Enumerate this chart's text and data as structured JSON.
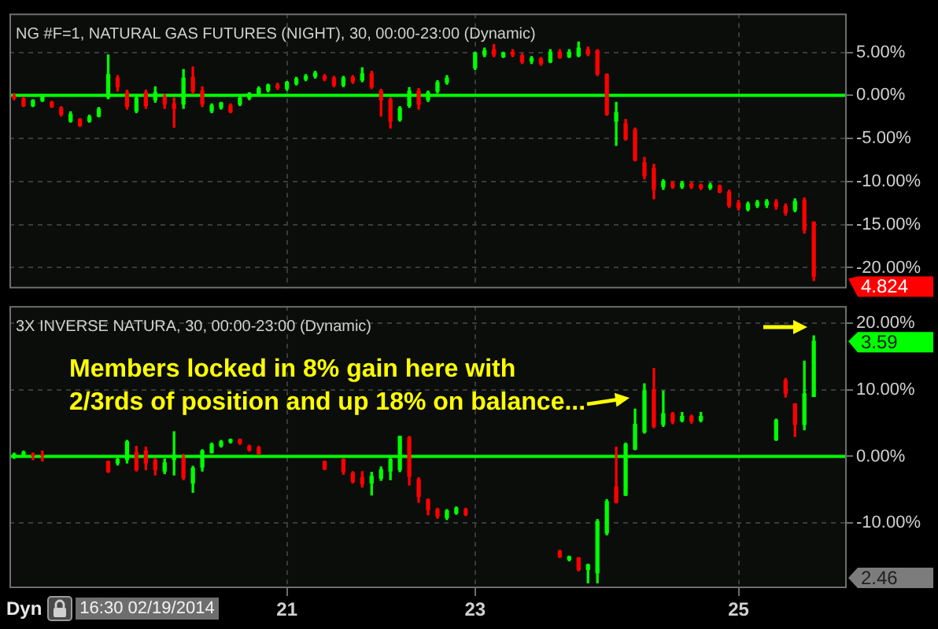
{
  "chart_data": [
    {
      "type": "candlestick",
      "title": "NG #F=1, NATURAL GAS FUTURES (NIGHT), 30, 00:00-23:00 (Dynamic)",
      "categories": [
        null,
        null,
        null,
        null,
        null,
        null,
        null,
        null,
        null,
        null,
        null,
        null,
        null,
        null,
        null,
        null,
        null,
        null,
        null,
        null,
        null,
        null,
        null,
        null,
        null,
        null,
        null,
        null,
        null,
        "21",
        null,
        null,
        null,
        null,
        null,
        null,
        null,
        null,
        null,
        null,
        null,
        null,
        null,
        null,
        null,
        null,
        null,
        null,
        null,
        "23",
        null,
        null,
        null,
        null,
        null,
        null,
        null,
        null,
        null,
        null,
        null,
        null,
        null,
        null,
        null,
        null,
        null,
        null,
        null,
        null,
        null,
        null,
        null,
        null,
        null,
        null,
        null,
        "25",
        null,
        null,
        null,
        null,
        null,
        null,
        null,
        null,
        null,
        null,
        null
      ],
      "ohlc": [
        [
          0,
          0.2,
          -0.5,
          -0.3
        ],
        [
          -0.4,
          -0.2,
          -1.3,
          -1.2
        ],
        [
          -1.2,
          -0.5,
          -1.3,
          -0.6
        ],
        [
          -0.6,
          0.1,
          -0.7,
          -0.2
        ],
        [
          -0.8,
          -0.7,
          -1.4,
          -1.3
        ],
        [
          -1.5,
          -1.3,
          -2.4,
          -2.2
        ],
        [
          -3.0,
          -1.9,
          -3.1,
          -2.2
        ],
        [
          -2.8,
          -2.7,
          -3.6,
          -3.5
        ],
        [
          -3.0,
          -2.3,
          -3.1,
          -2.5
        ],
        [
          -2.4,
          -1.4,
          -2.5,
          -1.6
        ],
        [
          -0.2,
          4.7,
          -0.4,
          2.4
        ],
        [
          2.0,
          2.3,
          0.5,
          1.0
        ],
        [
          0.3,
          0.6,
          -1.6,
          -1.3
        ],
        [
          -1.8,
          0.0,
          -2.0,
          -0.3
        ],
        [
          0.3,
          0.6,
          -1.5,
          -1.2
        ],
        [
          -0.5,
          1.0,
          -0.8,
          0.3
        ],
        [
          -0.2,
          0.1,
          -1.5,
          -1.0
        ],
        [
          -1.0,
          -0.3,
          -3.7,
          -1.5
        ],
        [
          -1.0,
          3.0,
          -1.5,
          2.0
        ],
        [
          2.1,
          3.3,
          0.2,
          0.5
        ],
        [
          0.5,
          1.0,
          -1.3,
          -1.0
        ],
        [
          -1.8,
          -1.0,
          -2.0,
          -1.2
        ],
        [
          -1.4,
          -0.8,
          -1.6,
          -0.9
        ],
        [
          -1.2,
          -1.0,
          -2.0,
          -1.9
        ],
        [
          -1.0,
          -0.1,
          -1.2,
          -0.3
        ],
        [
          -0.3,
          0.3,
          -0.5,
          0.2
        ],
        [
          0.2,
          1.0,
          0.0,
          0.8
        ],
        [
          0.6,
          1.3,
          0.4,
          1.2
        ],
        [
          1.2,
          1.4,
          0.7,
          0.9
        ],
        [
          0.8,
          1.6,
          0.6,
          1.5
        ],
        [
          1.4,
          2.1,
          1.2,
          1.9
        ],
        [
          1.9,
          2.4,
          1.7,
          2.2
        ],
        [
          2.2,
          2.8,
          2.0,
          2.6
        ],
        [
          2.2,
          2.4,
          1.7,
          1.9
        ],
        [
          2.0,
          2.2,
          1.0,
          1.2
        ],
        [
          1.2,
          2.2,
          1.0,
          2.0
        ],
        [
          2.1,
          2.3,
          1.4,
          1.6
        ],
        [
          1.8,
          3.2,
          1.6,
          2.5
        ],
        [
          2.5,
          2.8,
          0.8,
          1.0
        ],
        [
          0.5,
          0.7,
          -2.4,
          -0.5
        ],
        [
          -0.5,
          -0.3,
          -3.8,
          -3.0
        ],
        [
          -2.8,
          -1.3,
          -3.0,
          -1.5
        ],
        [
          -1.2,
          0.9,
          -1.4,
          0.5
        ],
        [
          0.5,
          0.8,
          -1.6,
          -1.0
        ],
        [
          -0.5,
          0.5,
          -0.7,
          0.3
        ],
        [
          0.5,
          1.7,
          0.3,
          1.5
        ],
        [
          1.5,
          2.3,
          1.3,
          2.0
        ],
        null,
        null,
        [
          3.2,
          5.0,
          3.0,
          4.9
        ],
        [
          4.7,
          5.5,
          4.5,
          5.2
        ],
        [
          5.3,
          5.9,
          4.5,
          4.7
        ],
        [
          4.5,
          5.0,
          4.4,
          4.9
        ],
        [
          5.0,
          5.3,
          4.5,
          4.7
        ],
        [
          4.6,
          4.8,
          3.7,
          3.9
        ],
        [
          4.0,
          4.5,
          3.7,
          4.3
        ],
        [
          4.2,
          4.4,
          3.5,
          3.7
        ],
        [
          3.9,
          5.3,
          3.8,
          5.0
        ],
        [
          5.0,
          5.3,
          4.3,
          4.4
        ],
        [
          4.5,
          5.3,
          4.4,
          5.0
        ],
        [
          4.6,
          6.2,
          4.5,
          5.5
        ],
        [
          5.3,
          5.6,
          4.6,
          4.8
        ],
        [
          5.2,
          5.3,
          2.3,
          2.5
        ],
        [
          2.4,
          2.5,
          -2.3,
          -2.2
        ],
        [
          -3.0,
          -0.8,
          -5.8,
          -2.0
        ],
        [
          -3.3,
          -2.8,
          -5.2,
          -5.0
        ],
        [
          -4.0,
          -3.8,
          -7.6,
          -7.5
        ],
        [
          -7.8,
          -7.2,
          -9.7,
          -9.3
        ],
        [
          -8.5,
          -8.0,
          -12.0,
          -10.9
        ],
        [
          -10.6,
          -9.8,
          -10.9,
          -10.0
        ],
        [
          -10.2,
          -10.0,
          -10.8,
          -10.6
        ],
        [
          -10.6,
          -10.0,
          -10.8,
          -10.2
        ],
        [
          -10.3,
          -10.1,
          -10.8,
          -10.6
        ],
        [
          -10.4,
          -10.3,
          -10.9,
          -10.7
        ],
        [
          -10.7,
          -10.2,
          -10.9,
          -10.4
        ],
        [
          -10.5,
          -10.4,
          -11.3,
          -11.2
        ],
        [
          -11.2,
          -11.0,
          -13.0,
          -12.8
        ],
        [
          -12.5,
          -12.2,
          -13.3,
          -13.0
        ],
        [
          -13.2,
          -12.4,
          -13.4,
          -12.6
        ],
        [
          -12.8,
          -12.2,
          -13.0,
          -12.4
        ],
        [
          -12.7,
          -12.1,
          -13.0,
          -12.3
        ],
        [
          -12.4,
          -12.1,
          -13.2,
          -12.9
        ],
        [
          -12.9,
          -12.6,
          -13.9,
          -13.6
        ],
        [
          -13.3,
          -12.0,
          -13.5,
          -12.3
        ],
        [
          -12.2,
          -11.9,
          -16.0,
          -15.6
        ],
        [
          -14.7,
          -14.7,
          -21.5,
          -21.0
        ],
        null,
        null,
        null
      ],
      "colors": [
        "#ff0000",
        "#ff0000",
        "#00ff00",
        "#00ff00",
        "#ff0000",
        "#ff0000",
        "#00ff00",
        "#ff0000",
        "#00ff00",
        "#00ff00",
        "#00ff00",
        "#ff0000",
        "#ff0000",
        "#00ff00",
        "#ff0000",
        "#00ff00",
        "#ff0000",
        "#ff0000",
        "#00ff00",
        "#ff0000",
        "#ff0000",
        "#00ff00",
        "#00ff00",
        "#ff0000",
        "#00ff00",
        "#00ff00",
        "#00ff00",
        "#00ff00",
        "#ff0000",
        "#00ff00",
        "#00ff00",
        "#00ff00",
        "#00ff00",
        "#ff0000",
        "#ff0000",
        "#00ff00",
        "#ff0000",
        "#00ff00",
        "#ff0000",
        "#ff0000",
        "#ff0000",
        "#00ff00",
        "#00ff00",
        "#ff0000",
        "#00ff00",
        "#00ff00",
        "#00ff00",
        null,
        null,
        "#00ff00",
        "#00ff00",
        "#ff0000",
        "#00ff00",
        "#ff0000",
        "#ff0000",
        "#00ff00",
        "#ff0000",
        "#00ff00",
        "#ff0000",
        "#00ff00",
        "#00ff00",
        "#ff0000",
        "#ff0000",
        "#ff0000",
        "#00ff00",
        "#ff0000",
        "#ff0000",
        "#ff0000",
        "#ff0000",
        "#00ff00",
        "#ff0000",
        "#00ff00",
        "#ff0000",
        "#ff0000",
        "#00ff00",
        "#ff0000",
        "#ff0000",
        "#ff0000",
        "#00ff00",
        "#00ff00",
        "#00ff00",
        "#ff0000",
        "#ff0000",
        "#00ff00",
        "#ff0000",
        "#ff0000",
        null,
        null,
        null
      ],
      "ylim": [
        -22.4,
        9.5
      ],
      "yticks": [
        {
          "value": 5,
          "label": "5.00%"
        },
        {
          "value": 0,
          "label": "0.00%"
        },
        {
          "value": -5,
          "label": "-5.00%"
        },
        {
          "value": -10,
          "label": "-10.00%"
        },
        {
          "value": -15,
          "label": "-15.00%"
        },
        {
          "value": -20,
          "label": "-20.00%"
        }
      ],
      "grid": true,
      "tick_labels": "y",
      "ref_lines": [
        {
          "axis": "y",
          "value": 0,
          "color": "#00ff00"
        }
      ],
      "annotations": [
        "4.824"
      ]
    },
    {
      "type": "candlestick",
      "title": "3X INVERSE NATURA, 30, 00:00-23:00 (Dynamic)",
      "categories": [
        null,
        null,
        null,
        null,
        null,
        null,
        null,
        null,
        null,
        null,
        null,
        null,
        null,
        null,
        null,
        null,
        null,
        null,
        null,
        null,
        null,
        null,
        null,
        null,
        null,
        null,
        null,
        null,
        null,
        "21",
        null,
        null,
        null,
        null,
        null,
        null,
        null,
        null,
        null,
        null,
        null,
        null,
        null,
        null,
        null,
        null,
        null,
        null,
        null,
        "23",
        null,
        null,
        null,
        null,
        null,
        null,
        null,
        null,
        null,
        null,
        null,
        null,
        null,
        null,
        null,
        null,
        null,
        null,
        null,
        null,
        null,
        null,
        null,
        null,
        null,
        null,
        null,
        "25",
        null,
        null,
        null,
        null,
        null,
        null,
        null,
        null,
        null,
        null,
        null
      ],
      "ohlc": [
        [
          -0.1,
          0.5,
          -0.3,
          0.3
        ],
        [
          0.1,
          0.8,
          -0.1,
          0.6
        ],
        [
          0.3,
          0.5,
          -0.5,
          0.0
        ],
        [
          0.2,
          0.8,
          -0.7,
          0.0
        ],
        null,
        null,
        null,
        null,
        null,
        null,
        [
          -0.8,
          -0.7,
          -2.4,
          -2.3
        ],
        [
          -1.0,
          -0.3,
          -1.3,
          -0.5
        ],
        [
          -0.5,
          2.4,
          -1.0,
          2.2
        ],
        [
          0.6,
          1.5,
          -2.2,
          -2.0
        ],
        [
          0.8,
          1.4,
          -2.0,
          -1.0
        ],
        [
          -0.6,
          -0.3,
          -2.8,
          -2.0
        ],
        [
          -2.2,
          -0.4,
          -2.6,
          -1.0
        ],
        [
          -0.5,
          3.7,
          -2.8,
          0.2
        ],
        [
          -0.3,
          0.3,
          -3.5,
          -3.2
        ],
        [
          -4.0,
          -1.5,
          -5.4,
          -1.8
        ],
        [
          -1.6,
          1.0,
          -2.2,
          0.8
        ],
        [
          0.6,
          2.0,
          0.5,
          1.8
        ],
        [
          1.6,
          2.4,
          1.4,
          2.2
        ],
        [
          2.2,
          2.6,
          2.0,
          2.5
        ],
        [
          2.5,
          2.6,
          1.8,
          2.0
        ],
        [
          1.5,
          1.7,
          0.8,
          1.0
        ],
        [
          1.3,
          1.5,
          0.3,
          0.4
        ],
        null,
        null,
        null,
        null,
        null,
        null,
        [
          -0.8,
          -0.7,
          -2.0,
          -1.9
        ],
        null,
        [
          -0.5,
          -0.4,
          -2.7,
          -2.3
        ],
        [
          -2.5,
          -2.3,
          -4.0,
          -3.8
        ],
        [
          -3.2,
          -2.3,
          -4.6,
          -4.1
        ],
        [
          -4.0,
          -2.4,
          -5.8,
          -3.0
        ],
        [
          -3.3,
          -1.6,
          -3.6,
          -2.0
        ],
        [
          -2.2,
          -0.3,
          -3.5,
          -0.5
        ],
        [
          -2.0,
          3.0,
          -2.3,
          3.0
        ],
        [
          2.8,
          3.0,
          -4.3,
          -3.0
        ],
        [
          -3.5,
          -3.2,
          -6.9,
          -6.0
        ],
        [
          -6.5,
          -6.4,
          -8.8,
          -8.0
        ],
        [
          -8.0,
          -7.8,
          -9.3,
          -9.0
        ],
        [
          -9.2,
          -8.0,
          -9.5,
          -8.2
        ],
        [
          -8.5,
          -7.6,
          -8.7,
          -7.8
        ],
        [
          -8.0,
          -7.8,
          -8.9,
          -8.7
        ],
        null,
        null,
        null,
        null,
        null,
        null,
        null,
        null,
        null,
        [
          -14.3,
          -14.1,
          -15.2,
          -15.1
        ],
        [
          -15.5,
          -15.0,
          -15.7,
          -15.1
        ],
        [
          -15.3,
          -15.2,
          -17.2,
          -17.0
        ],
        [
          -17.0,
          -16.2,
          -19.0,
          -16.3
        ],
        [
          -17.5,
          -9.5,
          -19.0,
          -9.8
        ],
        [
          -11.5,
          -6.5,
          -11.8,
          -6.8
        ],
        [
          -4.6,
          1.4,
          -7.0,
          -6.9
        ],
        [
          -5.8,
          2.0,
          -5.9,
          1.8
        ],
        [
          1.1,
          7.1,
          1.0,
          4.8
        ],
        [
          3.7,
          10.9,
          3.5,
          9.8
        ],
        [
          10.0,
          13.2,
          4.3,
          4.5
        ],
        [
          4.8,
          9.8,
          4.5,
          6.4
        ],
        [
          6.4,
          6.6,
          4.9,
          5.2
        ],
        [
          5.4,
          6.6,
          5.2,
          6.0
        ],
        [
          6.0,
          6.2,
          5.0,
          5.3
        ],
        [
          5.4,
          6.6,
          5.2,
          6.0
        ],
        null,
        null,
        null,
        null,
        null,
        null,
        null,
        [
          2.5,
          5.6,
          2.4,
          5.4
        ],
        [
          11.4,
          11.7,
          8.9,
          9.5
        ],
        [
          7.9,
          7.9,
          3.0,
          4.8
        ],
        [
          4.8,
          14.3,
          4.0,
          9.4
        ],
        [
          9.0,
          18.1,
          9.0,
          17.3
        ],
        null,
        null,
        null
      ],
      "colors": [
        "#00ff00",
        "#00ff00",
        "#ff0000",
        "#ff0000",
        null,
        null,
        null,
        null,
        null,
        null,
        "#ff0000",
        "#00ff00",
        "#00ff00",
        "#ff0000",
        "#ff0000",
        "#ff0000",
        "#00ff00",
        "#00ff00",
        "#ff0000",
        "#00ff00",
        "#00ff00",
        "#00ff00",
        "#00ff00",
        "#00ff00",
        "#ff0000",
        "#ff0000",
        "#ff0000",
        null,
        null,
        null,
        null,
        null,
        null,
        "#ff0000",
        null,
        "#ff0000",
        "#ff0000",
        "#ff0000",
        "#00ff00",
        "#00ff00",
        "#00ff00",
        "#00ff00",
        "#ff0000",
        "#ff0000",
        "#ff0000",
        "#ff0000",
        "#00ff00",
        "#00ff00",
        "#ff0000",
        null,
        null,
        null,
        null,
        null,
        null,
        null,
        null,
        null,
        "#ff0000",
        "#00ff00",
        "#ff0000",
        "#00ff00",
        "#00ff00",
        "#00ff00",
        "#ff0000",
        "#00ff00",
        "#00ff00",
        "#00ff00",
        "#ff0000",
        "#00ff00",
        "#ff0000",
        "#00ff00",
        "#ff0000",
        "#00ff00",
        null,
        null,
        null,
        null,
        null,
        null,
        null,
        "#00ff00",
        "#ff0000",
        "#ff0000",
        "#00ff00",
        "#00ff00",
        null,
        null,
        null
      ],
      "ylim": [
        -19.8,
        22.6
      ],
      "yticks": [
        {
          "value": 20,
          "label": "20.00%"
        },
        {
          "value": 10,
          "label": "10.00%"
        },
        {
          "value": 0,
          "label": "0.00%"
        },
        {
          "value": -10,
          "label": "-10.00%"
        }
      ],
      "grid": true,
      "ref_lines": [
        {
          "axis": "y",
          "value": 0,
          "color": "#00ff00"
        }
      ],
      "annotations": [
        "Members locked in 8% gain here with 2/3rds of position and up 18% on balance...",
        "3.59",
        "2.46",
        "Dyn",
        "16:30 02/19/2014"
      ]
    }
  ]
}
